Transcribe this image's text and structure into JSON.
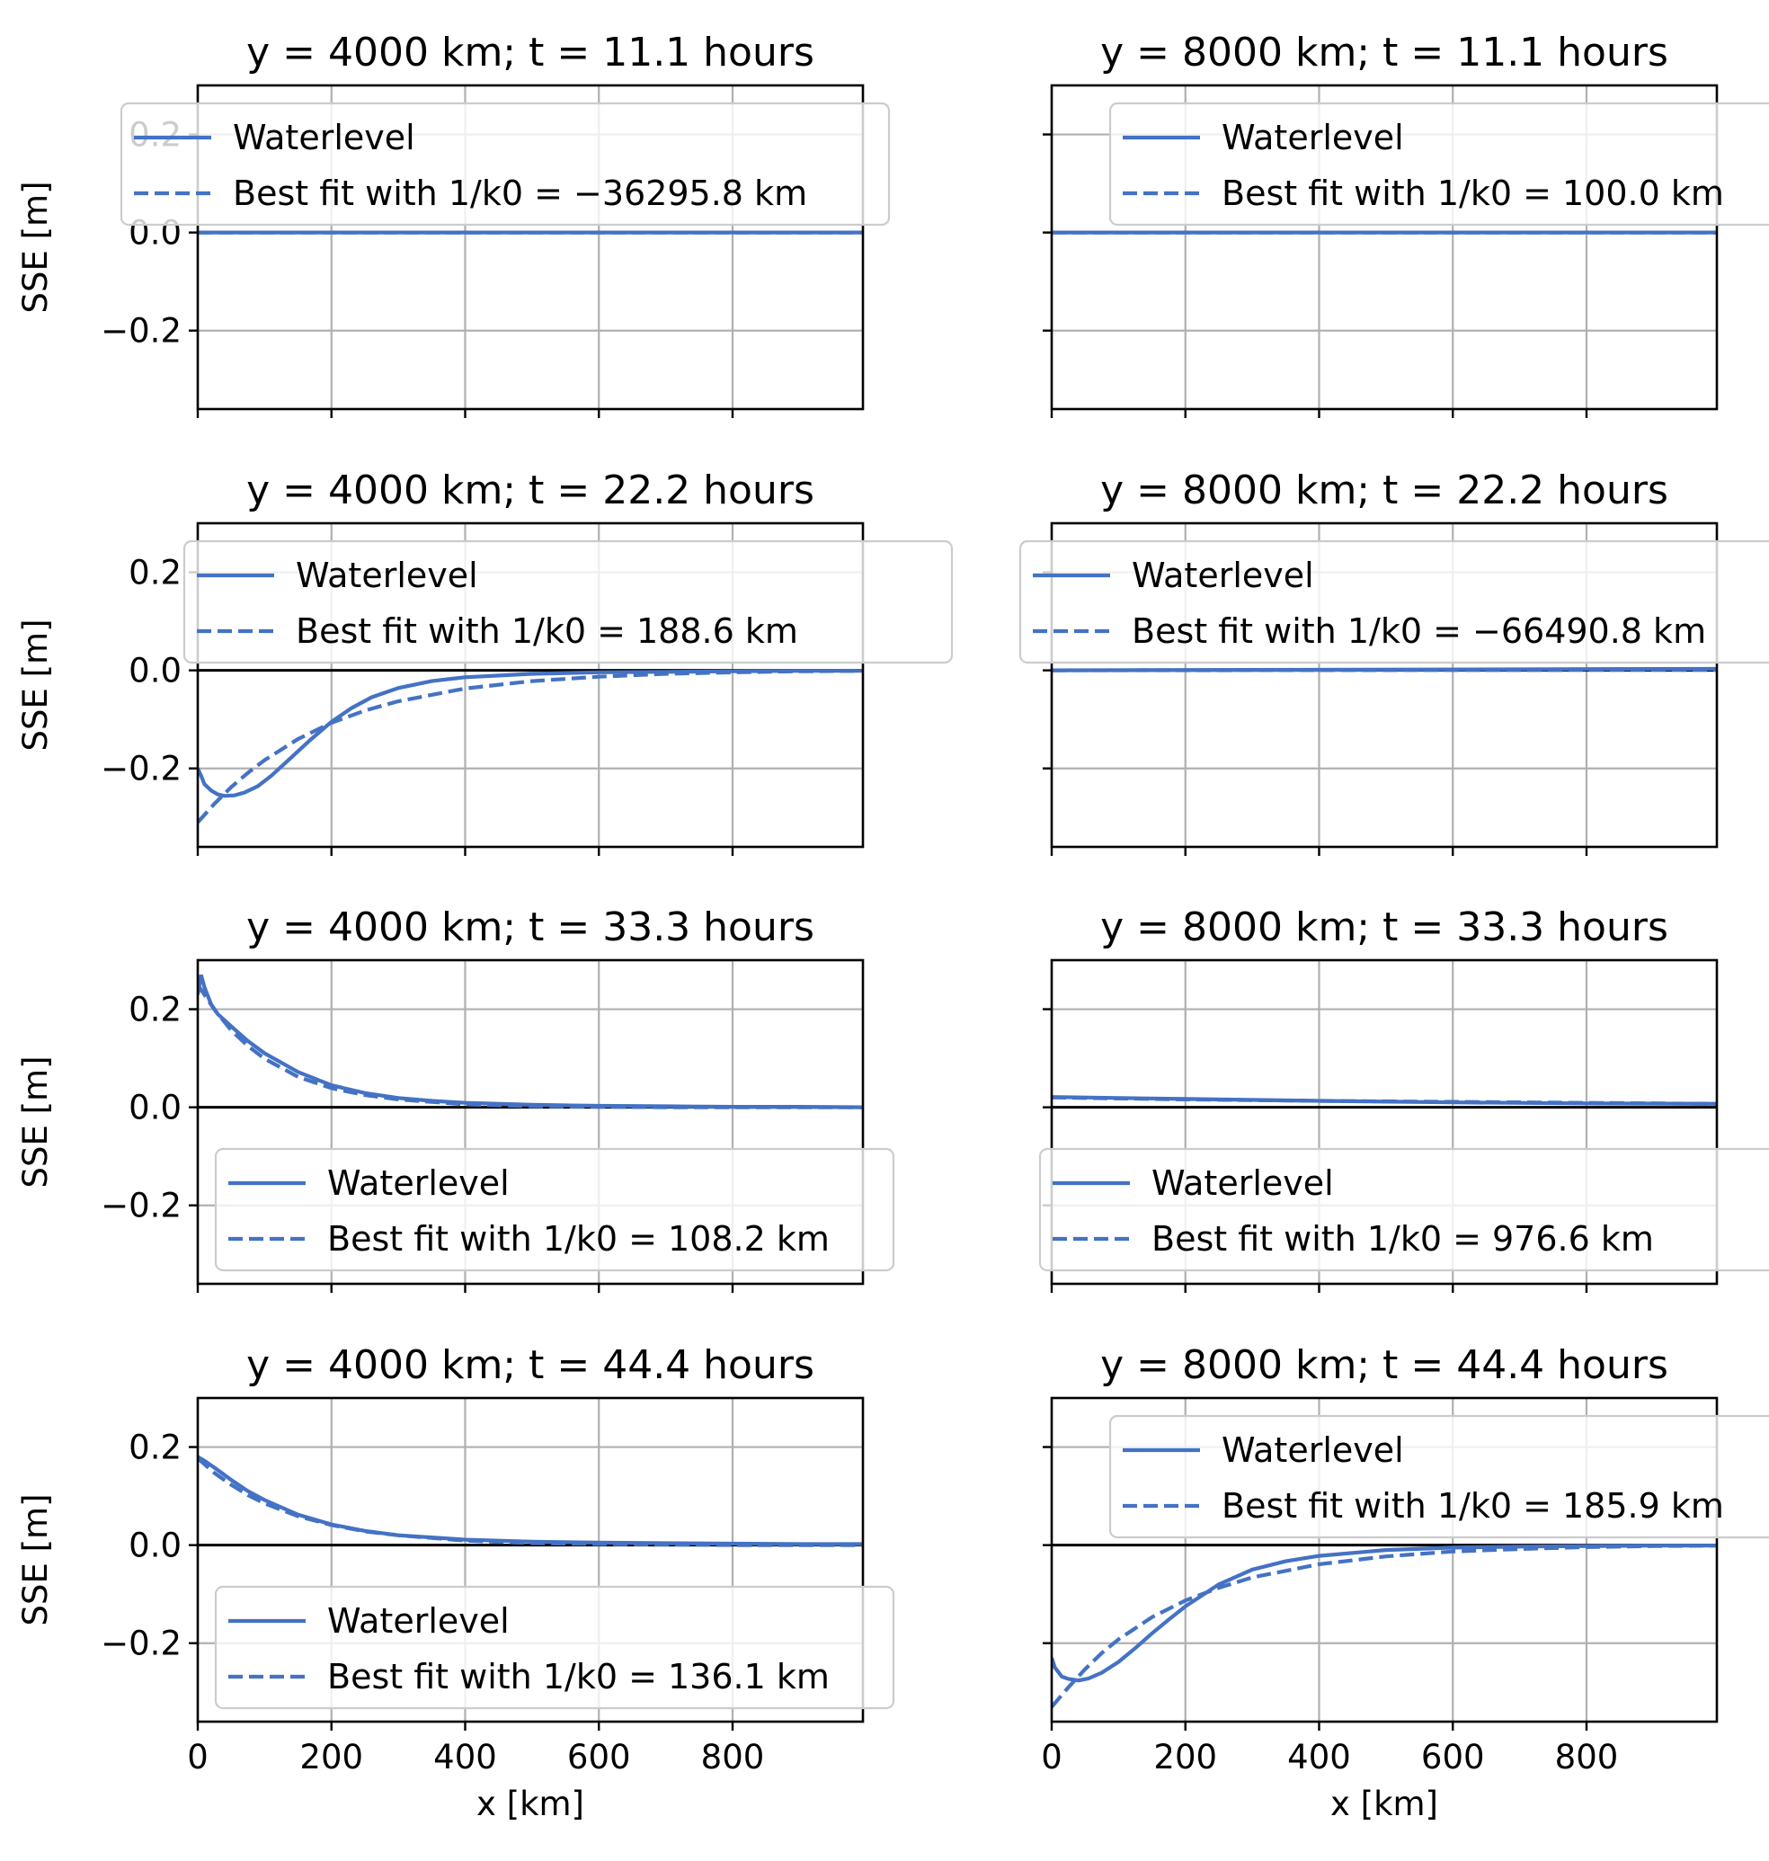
{
  "colors": {
    "series": "#4472c4"
  },
  "chart_data": [
    {
      "type": "line",
      "title": "y = 4000 km; t = 11.1 hours",
      "xlabel": "",
      "ylabel": "SSE [m]",
      "xlim": [
        0,
        995
      ],
      "ylim": [
        -0.36,
        0.3
      ],
      "xticks": [
        0,
        200,
        400,
        600,
        800
      ],
      "yticks": [
        -0.2,
        0.0,
        0.2
      ],
      "xtick_labels": [
        "",
        "",
        "",
        "",
        ""
      ],
      "ytick_labels": [
        "−0.2",
        "0.0",
        "0.2"
      ],
      "grid": true,
      "legend_position": "upper",
      "series": [
        {
          "name": "Waterlevel",
          "style": "solid",
          "x": [
            0,
            995
          ],
          "y": [
            0.0,
            0.0
          ]
        },
        {
          "name": "Best fit with 1/k0 = −36295.8 km",
          "style": "dashed",
          "x": [
            0,
            995
          ],
          "y": [
            0.0,
            0.0
          ]
        }
      ]
    },
    {
      "type": "line",
      "title": "y = 8000 km; t = 11.1 hours",
      "xlabel": "",
      "ylabel": "",
      "xlim": [
        0,
        995
      ],
      "ylim": [
        -0.36,
        0.3
      ],
      "xticks": [
        0,
        200,
        400,
        600,
        800
      ],
      "yticks": [
        -0.2,
        0.0,
        0.2
      ],
      "xtick_labels": [
        "",
        "",
        "",
        "",
        ""
      ],
      "ytick_labels": [
        "",
        "",
        ""
      ],
      "grid": true,
      "legend_position": "upper",
      "series": [
        {
          "name": "Waterlevel",
          "style": "solid",
          "x": [
            0,
            995
          ],
          "y": [
            0.0,
            0.0
          ]
        },
        {
          "name": "Best fit with 1/k0 = 100.0 km",
          "style": "dashed",
          "x": [
            0,
            995
          ],
          "y": [
            0.0,
            0.0
          ]
        }
      ]
    },
    {
      "type": "line",
      "title": "y = 4000 km; t = 22.2 hours",
      "xlabel": "",
      "ylabel": "SSE [m]",
      "xlim": [
        0,
        995
      ],
      "ylim": [
        -0.36,
        0.3
      ],
      "xticks": [
        0,
        200,
        400,
        600,
        800
      ],
      "yticks": [
        -0.2,
        0.0,
        0.2
      ],
      "xtick_labels": [
        "",
        "",
        "",
        "",
        ""
      ],
      "ytick_labels": [
        "−0.2",
        "0.0",
        "0.2"
      ],
      "grid": true,
      "legend_position": "upper",
      "series": [
        {
          "name": "Waterlevel",
          "style": "solid",
          "x": [
            0,
            5,
            10,
            20,
            30,
            40,
            55,
            70,
            90,
            110,
            130,
            150,
            170,
            200,
            230,
            260,
            300,
            350,
            400,
            500,
            600,
            700,
            800,
            900,
            995
          ],
          "y": [
            -0.2,
            -0.215,
            -0.232,
            -0.245,
            -0.253,
            -0.256,
            -0.255,
            -0.249,
            -0.236,
            -0.215,
            -0.19,
            -0.165,
            -0.14,
            -0.105,
            -0.077,
            -0.055,
            -0.036,
            -0.022,
            -0.014,
            -0.007,
            -0.004,
            -0.003,
            -0.002,
            -0.001,
            -0.001
          ]
        },
        {
          "name": "Best fit with 1/k0 = 188.6 km",
          "style": "dashed",
          "x": [
            0,
            25,
            50,
            75,
            100,
            150,
            200,
            250,
            300,
            400,
            500,
            600,
            700,
            800,
            900,
            995
          ],
          "y": [
            -0.31,
            -0.272,
            -0.238,
            -0.209,
            -0.183,
            -0.14,
            -0.107,
            -0.082,
            -0.063,
            -0.037,
            -0.022,
            -0.013,
            -0.007,
            -0.004,
            -0.002,
            -0.001
          ]
        }
      ]
    },
    {
      "type": "line",
      "title": "y = 8000 km; t = 22.2 hours",
      "xlabel": "",
      "ylabel": "",
      "xlim": [
        0,
        995
      ],
      "ylim": [
        -0.36,
        0.3
      ],
      "xticks": [
        0,
        200,
        400,
        600,
        800
      ],
      "yticks": [
        -0.2,
        0.0,
        0.2
      ],
      "xtick_labels": [
        "",
        "",
        "",
        "",
        ""
      ],
      "ytick_labels": [
        "",
        "",
        ""
      ],
      "grid": true,
      "legend_position": "upper",
      "series": [
        {
          "name": "Waterlevel",
          "style": "solid",
          "x": [
            0,
            995
          ],
          "y": [
            0.0,
            0.003
          ]
        },
        {
          "name": "Best fit with 1/k0 = −66490.8 km",
          "style": "dashed",
          "x": [
            0,
            995
          ],
          "y": [
            0.0,
            0.001
          ]
        }
      ]
    },
    {
      "type": "line",
      "title": "y = 4000 km; t = 33.3 hours",
      "xlabel": "",
      "ylabel": "SSE [m]",
      "xlim": [
        0,
        995
      ],
      "ylim": [
        -0.36,
        0.3
      ],
      "xticks": [
        0,
        200,
        400,
        600,
        800
      ],
      "yticks": [
        -0.2,
        0.0,
        0.2
      ],
      "xtick_labels": [
        "",
        "",
        "",
        "",
        ""
      ],
      "ytick_labels": [
        "−0.2",
        "0.0",
        "0.2"
      ],
      "grid": true,
      "legend_position": "lower",
      "series": [
        {
          "name": "Waterlevel",
          "style": "solid",
          "x": [
            0,
            5,
            10,
            20,
            30,
            50,
            75,
            100,
            150,
            200,
            250,
            300,
            350,
            400,
            500,
            600,
            700,
            800,
            900,
            995
          ],
          "y": [
            0.23,
            0.27,
            0.245,
            0.21,
            0.19,
            0.165,
            0.135,
            0.11,
            0.072,
            0.045,
            0.029,
            0.019,
            0.013,
            0.009,
            0.005,
            0.003,
            0.002,
            0.001,
            0.001,
            0.0
          ]
        },
        {
          "name": "Best fit with 1/k0 = 108.2 km",
          "style": "dashed",
          "x": [
            0,
            25,
            50,
            75,
            100,
            150,
            200,
            250,
            300,
            400,
            500,
            600,
            700,
            800,
            900,
            995
          ],
          "y": [
            0.25,
            0.199,
            0.157,
            0.125,
            0.099,
            0.062,
            0.039,
            0.025,
            0.016,
            0.006,
            0.002,
            0.001,
            0.0,
            0.0,
            0.0,
            0.0
          ]
        }
      ]
    },
    {
      "type": "line",
      "title": "y = 8000 km; t = 33.3 hours",
      "xlabel": "",
      "ylabel": "",
      "xlim": [
        0,
        995
      ],
      "ylim": [
        -0.36,
        0.3
      ],
      "xticks": [
        0,
        200,
        400,
        600,
        800
      ],
      "yticks": [
        -0.2,
        0.0,
        0.2
      ],
      "xtick_labels": [
        "",
        "",
        "",
        "",
        ""
      ],
      "ytick_labels": [
        "",
        "",
        ""
      ],
      "grid": true,
      "legend_position": "lower",
      "series": [
        {
          "name": "Waterlevel",
          "style": "solid",
          "x": [
            0,
            200,
            400,
            600,
            800,
            995
          ],
          "y": [
            0.021,
            0.017,
            0.013,
            0.01,
            0.008,
            0.007
          ]
        },
        {
          "name": "Best fit with 1/k0 = 976.6 km",
          "style": "dashed",
          "x": [
            0,
            200,
            400,
            600,
            800,
            995
          ],
          "y": [
            0.02,
            0.016,
            0.013,
            0.011,
            0.009,
            0.007
          ]
        }
      ]
    },
    {
      "type": "line",
      "title": "y = 4000 km; t = 44.4 hours",
      "xlabel": "x [km]",
      "ylabel": "SSE [m]",
      "xlim": [
        0,
        995
      ],
      "ylim": [
        -0.36,
        0.3
      ],
      "xticks": [
        0,
        200,
        400,
        600,
        800
      ],
      "yticks": [
        -0.2,
        0.0,
        0.2
      ],
      "xtick_labels": [
        "0",
        "200",
        "400",
        "600",
        "800"
      ],
      "ytick_labels": [
        "−0.2",
        "0.0",
        "0.2"
      ],
      "grid": true,
      "legend_position": "lower",
      "series": [
        {
          "name": "Waterlevel",
          "style": "solid",
          "x": [
            0,
            10,
            25,
            50,
            75,
            100,
            150,
            200,
            250,
            300,
            400,
            500,
            600,
            700,
            800,
            900,
            995
          ],
          "y": [
            0.18,
            0.172,
            0.158,
            0.133,
            0.11,
            0.092,
            0.062,
            0.042,
            0.029,
            0.02,
            0.011,
            0.007,
            0.005,
            0.004,
            0.003,
            0.002,
            0.002
          ]
        },
        {
          "name": "Best fit with 1/k0 = 136.1 km",
          "style": "dashed",
          "x": [
            0,
            25,
            50,
            75,
            100,
            150,
            200,
            250,
            300,
            400,
            500,
            600,
            700,
            800,
            900,
            995
          ],
          "y": [
            0.177,
            0.147,
            0.123,
            0.102,
            0.085,
            0.059,
            0.041,
            0.028,
            0.02,
            0.009,
            0.004,
            0.002,
            0.001,
            0.0,
            0.0,
            0.0
          ]
        }
      ]
    },
    {
      "type": "line",
      "title": "y = 8000 km; t = 44.4 hours",
      "xlabel": "x [km]",
      "ylabel": "",
      "xlim": [
        0,
        995
      ],
      "ylim": [
        -0.36,
        0.3
      ],
      "xticks": [
        0,
        200,
        400,
        600,
        800
      ],
      "yticks": [
        -0.2,
        0.0,
        0.2
      ],
      "xtick_labels": [
        "0",
        "200",
        "400",
        "600",
        "800"
      ],
      "ytick_labels": [
        "",
        "",
        ""
      ],
      "grid": true,
      "legend_position": "upper",
      "series": [
        {
          "name": "Waterlevel",
          "style": "solid",
          "x": [
            0,
            5,
            15,
            25,
            40,
            55,
            75,
            100,
            125,
            150,
            175,
            200,
            250,
            300,
            350,
            400,
            500,
            600,
            700,
            800,
            900,
            995
          ],
          "y": [
            -0.23,
            -0.25,
            -0.268,
            -0.273,
            -0.276,
            -0.272,
            -0.26,
            -0.238,
            -0.21,
            -0.18,
            -0.152,
            -0.125,
            -0.08,
            -0.05,
            -0.033,
            -0.022,
            -0.01,
            -0.005,
            -0.003,
            -0.002,
            -0.001,
            -0.001
          ]
        },
        {
          "name": "Best fit with 1/k0 = 185.9 km",
          "style": "dashed",
          "x": [
            0,
            25,
            50,
            75,
            100,
            150,
            200,
            250,
            300,
            400,
            500,
            600,
            700,
            800,
            900,
            995
          ],
          "y": [
            -0.33,
            -0.29,
            -0.253,
            -0.22,
            -0.192,
            -0.147,
            -0.113,
            -0.087,
            -0.066,
            -0.039,
            -0.023,
            -0.013,
            -0.008,
            -0.004,
            -0.002,
            -0.001
          ]
        }
      ]
    }
  ]
}
